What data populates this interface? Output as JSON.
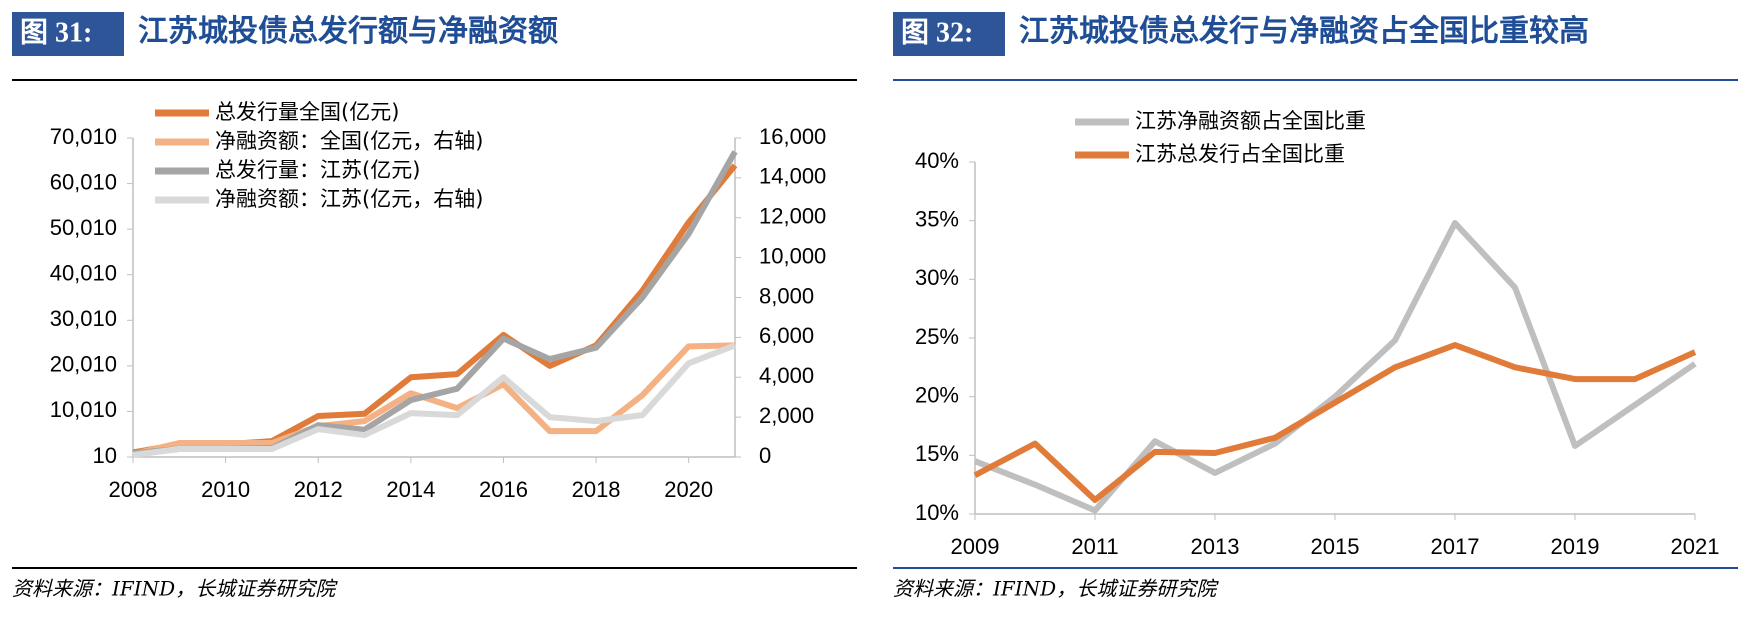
{
  "chart_data": [
    {
      "type": "line",
      "figure_label": "图 31:",
      "title": "江苏城投债总发行额与净融资额",
      "x": [
        2008,
        2009,
        2010,
        2011,
        2012,
        2013,
        2014,
        2015,
        2016,
        2017,
        2018,
        2019,
        2020,
        2021
      ],
      "xlim": [
        2008,
        2021
      ],
      "xticks": [
        2008,
        2010,
        2012,
        2014,
        2016,
        2018,
        2020
      ],
      "ylim": [
        10,
        70010
      ],
      "yticks": [
        10,
        {
          "value": 10010,
          "label": "10,010"
        },
        {
          "value": 20010,
          "label": "20,010"
        },
        {
          "value": 30010,
          "label": "30,010"
        },
        {
          "value": 40010,
          "label": "40,010"
        },
        {
          "value": 50010,
          "label": "50,010"
        },
        {
          "value": 60010,
          "label": "60,010"
        },
        {
          "value": 70010,
          "label": "70,010"
        }
      ],
      "y2lim": [
        0,
        16000
      ],
      "y2ticks": [
        0,
        {
          "value": 2000,
          "label": "2,000"
        },
        {
          "value": 4000,
          "label": "4,000"
        },
        {
          "value": 6000,
          "label": "6,000"
        },
        {
          "value": 8000,
          "label": "8,000"
        },
        {
          "value": 10000,
          "label": "10,000"
        },
        {
          "value": 12000,
          "label": "12,000"
        },
        {
          "value": 14000,
          "label": "14,000"
        },
        {
          "value": 16000,
          "label": "16,000"
        }
      ],
      "series": [
        {
          "name": "总发行量全国(亿元)",
          "color": "#e07b39",
          "values": [
            1000,
            2800,
            2800,
            3500,
            9000,
            9500,
            17500,
            18200,
            26800,
            20000,
            24500,
            36500,
            51500,
            64000
          ]
        },
        {
          "name": "净融资额：全国(亿元，右轴)",
          "color": "#f4b183",
          "axis": "y2",
          "values": [
            150,
            700,
            700,
            700,
            1550,
            1800,
            3200,
            2450,
            3650,
            1300,
            1300,
            3100,
            5550,
            5600
          ]
        },
        {
          "name": "总发行量：江苏(亿元)",
          "color": "#a5a5a5",
          "values": [
            800,
            1800,
            1800,
            2000,
            7000,
            6000,
            12500,
            15000,
            26000,
            21500,
            24000,
            35000,
            49000,
            67000
          ]
        },
        {
          "name": "净融资额：江苏(亿元，右轴)",
          "color": "#d9d9d9",
          "axis": "y2",
          "values": [
            100,
            400,
            400,
            400,
            1400,
            1100,
            2200,
            2100,
            4000,
            2000,
            1800,
            2100,
            4700,
            5600
          ]
        }
      ],
      "source": "资料来源：IFIND，长城证券研究院"
    },
    {
      "type": "line",
      "figure_label": "图 32:",
      "title": "江苏城投债总发行与净融资占全国比重较高",
      "x": [
        2009,
        2010,
        2011,
        2012,
        2013,
        2014,
        2015,
        2016,
        2017,
        2018,
        2019,
        2020,
        2021
      ],
      "xlim": [
        2009,
        2021
      ],
      "xticks": [
        2009,
        2011,
        2013,
        2015,
        2017,
        2019,
        2021
      ],
      "ylim": [
        10,
        40
      ],
      "yticks": [
        {
          "value": 10,
          "label": "10%"
        },
        {
          "value": 15,
          "label": "15%"
        },
        {
          "value": 20,
          "label": "20%"
        },
        {
          "value": 25,
          "label": "25%"
        },
        {
          "value": 30,
          "label": "30%"
        },
        {
          "value": 35,
          "label": "35%"
        },
        {
          "value": 40,
          "label": "40%"
        }
      ],
      "series": [
        {
          "name": "江苏净融资额占全国比重",
          "color": "#bfbfbf",
          "values": [
            14.5,
            12.5,
            10.3,
            16.2,
            13.5,
            16,
            20,
            24.8,
            34.8,
            29.3,
            15.8,
            19.3,
            22.8
          ]
        },
        {
          "name": "江苏总发行占全国比重",
          "color": "#e07b39",
          "values": [
            13.3,
            16,
            11.2,
            15.3,
            15.2,
            16.5,
            19.5,
            22.5,
            24.4,
            22.5,
            21.5,
            21.5,
            23.8
          ]
        }
      ],
      "source": "资料来源：IFIND，长城证券研究院"
    }
  ]
}
